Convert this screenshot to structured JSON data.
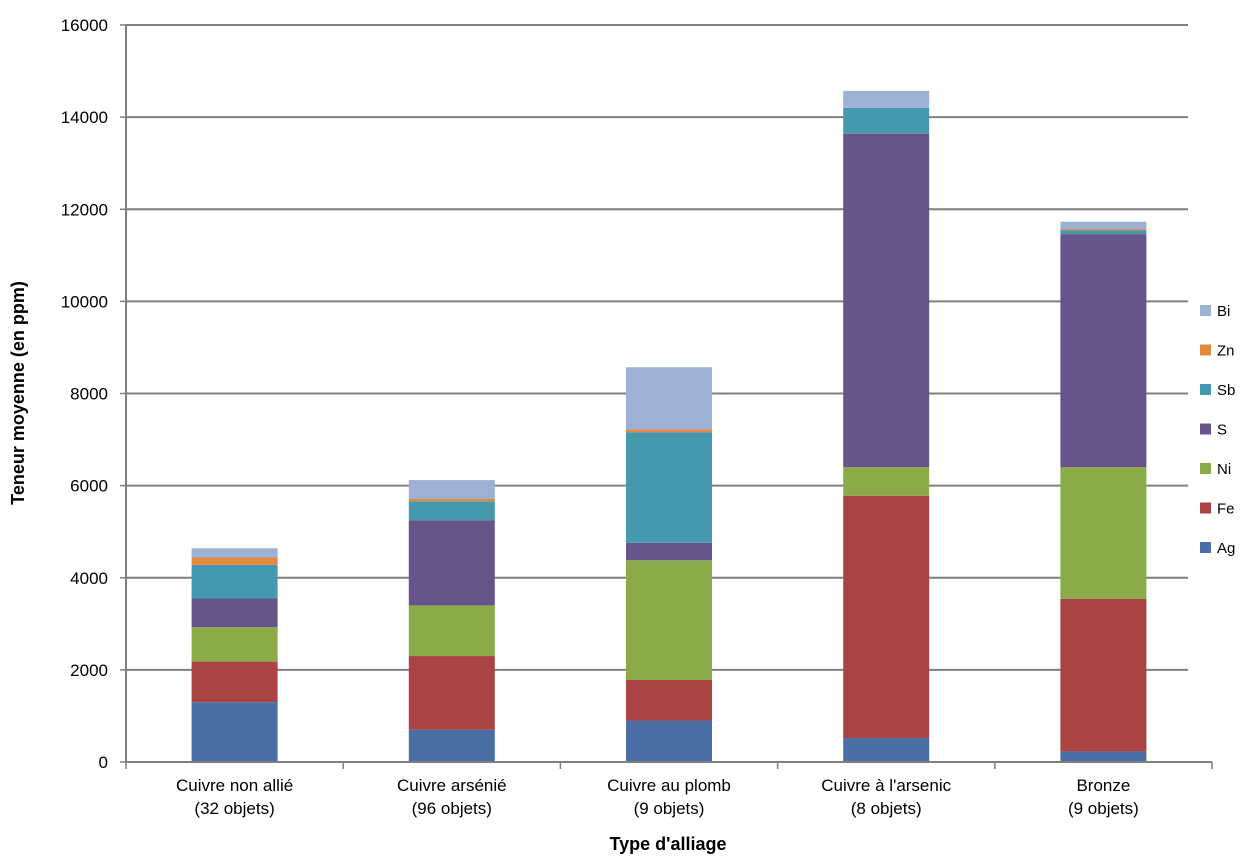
{
  "chart_data": {
    "type": "bar",
    "stacked": true,
    "title": "",
    "xlabel": "Type d'alliage",
    "ylabel": "Teneur moyenne (en ppm)",
    "ylim": [
      0,
      16000
    ],
    "yticks": [
      0,
      2000,
      4000,
      6000,
      8000,
      10000,
      12000,
      14000,
      16000
    ],
    "grid": true,
    "legend_position": "right",
    "categories": [
      [
        "Cuivre non allié",
        "(32 objets)"
      ],
      [
        "Cuivre arsénié",
        "(96 objets)"
      ],
      [
        "Cuivre au plomb",
        "(9 objets)"
      ],
      [
        "Cuivre à l'arsenic",
        "(8 objets)"
      ],
      [
        "Bronze",
        "(9 objets)"
      ]
    ],
    "series": [
      {
        "name": "Ag",
        "color": "#4a6fa5",
        "values": [
          1300,
          700,
          900,
          520,
          230
        ]
      },
      {
        "name": "Fe",
        "color": "#a94442",
        "values": [
          880,
          1600,
          880,
          5260,
          3310
        ]
      },
      {
        "name": "Ni",
        "color": "#8aab47",
        "values": [
          750,
          1100,
          2600,
          620,
          2860
        ]
      },
      {
        "name": "S",
        "color": "#67548a",
        "values": [
          620,
          1850,
          380,
          7240,
          5060
        ]
      },
      {
        "name": "Sb",
        "color": "#4499ae",
        "values": [
          730,
          410,
          2400,
          560,
          80
        ]
      },
      {
        "name": "Zn",
        "color": "#e5893f",
        "values": [
          160,
          50,
          60,
          0,
          30
        ]
      },
      {
        "name": "Bi",
        "color": "#9cb1d3",
        "values": [
          200,
          410,
          1350,
          370,
          160
        ]
      }
    ]
  }
}
